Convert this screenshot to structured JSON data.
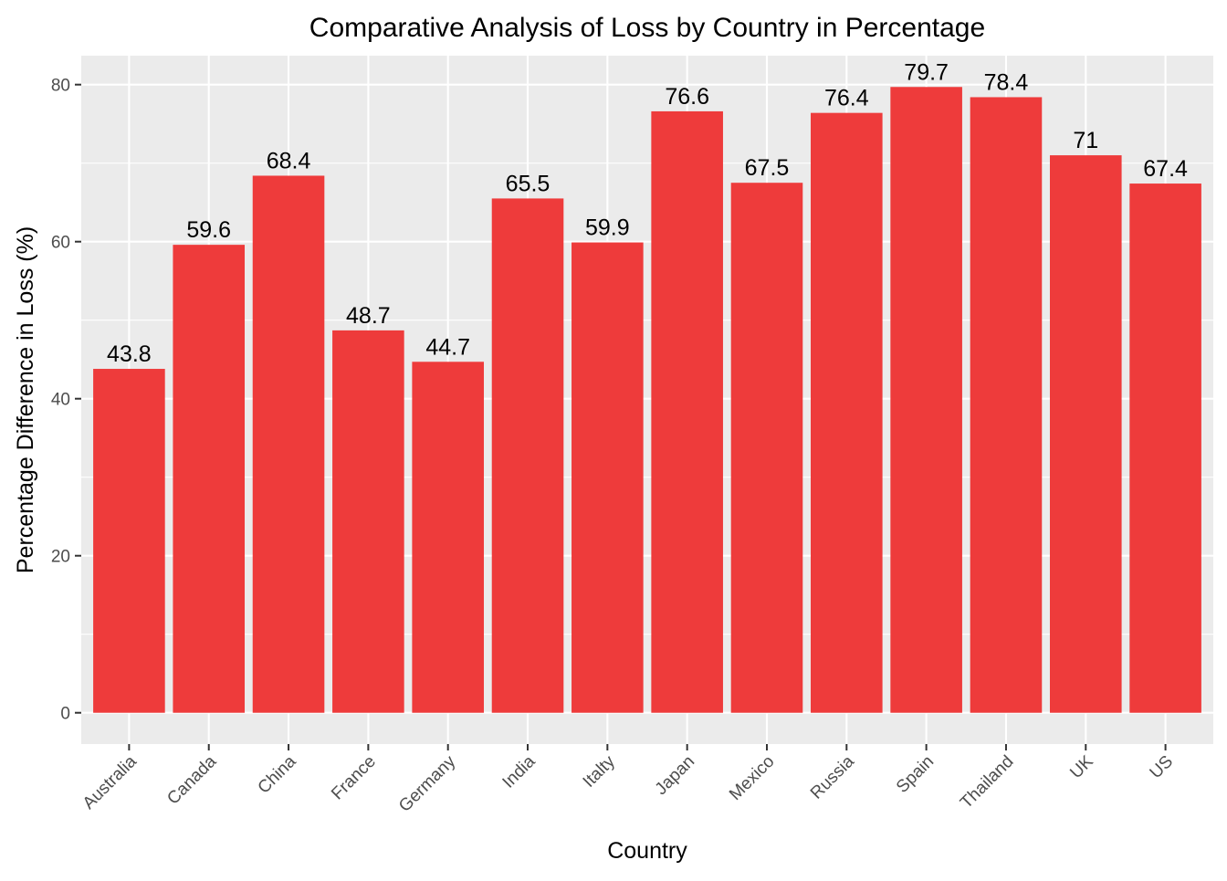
{
  "chart_data": {
    "type": "bar",
    "title": "Comparative Analysis of Loss by Country in Percentage",
    "xlabel": "Country",
    "ylabel": "Percentage Difference in Loss (%)",
    "categories": [
      "Australia",
      "Canada",
      "China",
      "France",
      "Germany",
      "India",
      "Italty",
      "Japan",
      "Mexico",
      "Russia",
      "Spain",
      "Thailand",
      "UK",
      "US"
    ],
    "values": [
      43.8,
      59.6,
      68.4,
      48.7,
      44.7,
      65.5,
      59.9,
      76.6,
      67.5,
      76.4,
      79.7,
      78.4,
      71,
      67.4
    ],
    "value_labels": [
      "43.8",
      "59.6",
      "68.4",
      "48.7",
      "44.7",
      "65.5",
      "59.9",
      "76.6",
      "67.5",
      "76.4",
      "79.7",
      "78.4",
      "71",
      "67.4"
    ],
    "y_ticks": [
      0,
      20,
      40,
      60,
      80
    ],
    "y_tick_labels": [
      "0",
      "20",
      "40",
      "60",
      "80"
    ],
    "ylim": [
      -3.985,
      83.685
    ],
    "grid": true,
    "legend": "none",
    "bar_color": "#EE3B3B",
    "panel_color": "#EBEBEB",
    "grid_color": "#FFFFFF"
  }
}
